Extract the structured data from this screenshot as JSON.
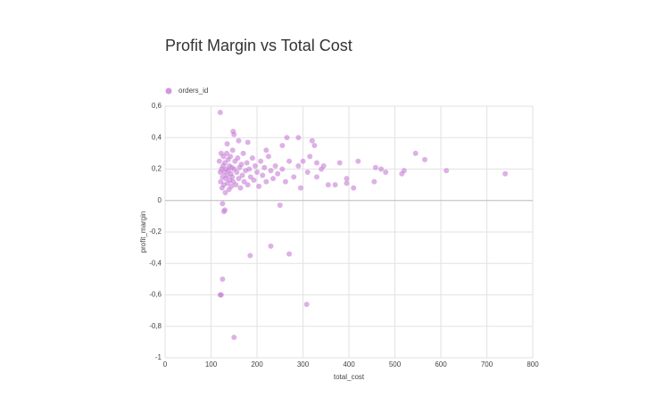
{
  "chart_data": {
    "type": "scatter",
    "title": "Profit Margin vs Total Cost",
    "x_label": "total_cost",
    "y_label": "profit_margin",
    "xlim": [
      0,
      800
    ],
    "xticks": [
      0,
      100,
      200,
      300,
      400,
      500,
      600,
      700,
      800
    ],
    "ylim": [
      -1,
      0.6
    ],
    "yticks": [
      {
        "value": -1,
        "label": "-1"
      },
      {
        "value": -0.8,
        "label": "-0,8"
      },
      {
        "value": -0.6,
        "label": "-0,6"
      },
      {
        "value": -0.4,
        "label": "-0,4"
      },
      {
        "value": -0.2,
        "label": "-0,2"
      },
      0,
      {
        "value": 0.2,
        "label": "0,2"
      },
      {
        "value": 0.4,
        "label": "0,4"
      },
      {
        "value": 0.6,
        "label": "0,6"
      }
    ],
    "grid": true,
    "legend": "top-left",
    "x": [
      120,
      148,
      150,
      120,
      122,
      125,
      150,
      185,
      230,
      270,
      308,
      740,
      612,
      565,
      545,
      520,
      515,
      480,
      470,
      458,
      455,
      420,
      410,
      395,
      395,
      380,
      370,
      355,
      340,
      330,
      325,
      320,
      300,
      290,
      265,
      255,
      250,
      130,
      128,
      125,
      135,
      160,
      180,
      220,
      118,
      120,
      121,
      122,
      123,
      124,
      125,
      126,
      127,
      128,
      129,
      130,
      131,
      132,
      133,
      134,
      135,
      136,
      137,
      138,
      139,
      140,
      141,
      142,
      143,
      144,
      145,
      146,
      147,
      148,
      150,
      152,
      154,
      156,
      158,
      160,
      162,
      164,
      166,
      168,
      170,
      172,
      175,
      178,
      180,
      183,
      186,
      190,
      193,
      196,
      200,
      204,
      208,
      212,
      216,
      220,
      225,
      230,
      235,
      240,
      245,
      255,
      262,
      270,
      280,
      290,
      295,
      310,
      315,
      330,
      345
    ],
    "series": [
      {
        "name": "orders_id",
        "color": "#c77dd6",
        "values": [
          0.56,
          0.44,
          0.42,
          -0.6,
          -0.6,
          -0.5,
          -0.87,
          -0.35,
          -0.29,
          -0.34,
          -0.66,
          0.17,
          0.19,
          0.26,
          0.3,
          0.19,
          0.17,
          0.18,
          0.2,
          0.21,
          0.12,
          0.25,
          0.08,
          0.14,
          0.11,
          0.24,
          0.1,
          0.1,
          0.2,
          0.24,
          0.35,
          0.38,
          0.25,
          0.4,
          0.4,
          0.35,
          -0.03,
          -0.06,
          -0.07,
          -0.02,
          0.36,
          0.38,
          0.37,
          0.32,
          0.25,
          0.18,
          0.12,
          0.3,
          0.2,
          0.08,
          0.15,
          0.22,
          0.28,
          0.1,
          0.18,
          0.24,
          0.05,
          0.14,
          0.2,
          0.3,
          0.16,
          0.11,
          0.26,
          0.19,
          0.07,
          0.22,
          0.13,
          0.28,
          0.17,
          0.09,
          0.21,
          0.15,
          0.32,
          0.12,
          0.2,
          0.25,
          0.1,
          0.18,
          0.27,
          0.14,
          0.21,
          0.08,
          0.23,
          0.16,
          0.3,
          0.12,
          0.19,
          0.24,
          0.1,
          0.2,
          0.15,
          0.27,
          0.13,
          0.22,
          0.18,
          0.09,
          0.25,
          0.16,
          0.21,
          0.12,
          0.28,
          0.19,
          0.14,
          0.22,
          0.17,
          0.2,
          0.12,
          0.25,
          0.15,
          0.22,
          0.08,
          0.18,
          0.28,
          0.15,
          0.22
        ]
      }
    ]
  }
}
